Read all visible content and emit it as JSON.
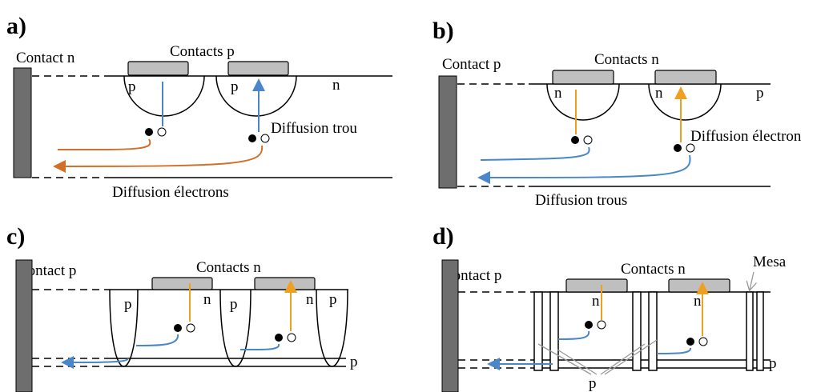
{
  "panels": [
    {
      "label": "a)",
      "contact": "Contact n",
      "contacts": "Contacts p",
      "regions": [
        "p",
        "p",
        "n"
      ],
      "diffusion_minor": "Diffusion trou",
      "diffusion_major": "Diffusion électrons"
    },
    {
      "label": "b)",
      "contact": "Contact p",
      "contacts": "Contacts n",
      "regions": [
        "n",
        "n",
        "p"
      ],
      "diffusion_minor": "Diffusion électron",
      "diffusion_major": "Diffusion trous"
    },
    {
      "label": "c)",
      "contact": "Contact p",
      "contacts": "Contacts n",
      "regions": [
        "p",
        "n",
        "p",
        "n",
        "p",
        "p"
      ]
    },
    {
      "label": "d)",
      "contact": "Contact p",
      "contacts": "Contacts n",
      "mesa": "Mesa",
      "regions": [
        "n",
        "n",
        "p",
        "p"
      ]
    }
  ]
}
